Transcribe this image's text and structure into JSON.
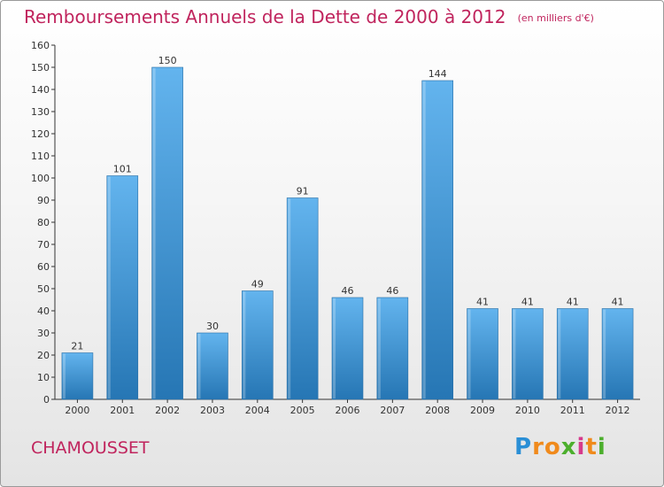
{
  "title": "Remboursements Annuels de la Dette de 2000 à 2012",
  "subtitle": "(en milliers d'€)",
  "place_name": "CHAMOUSSET",
  "brand": {
    "letters": [
      "P",
      "r",
      "o",
      "x",
      "i",
      "t",
      "i"
    ],
    "colors": [
      "#2a8fd6",
      "#f08a1c",
      "#f08a1c",
      "#4caf2d",
      "#d63a8c",
      "#f08a1c",
      "#4caf2d"
    ]
  },
  "colors": {
    "title": "#c0245d",
    "bar_light": "#63b4ee",
    "bar_dark": "#2676b4"
  },
  "chart_data": {
    "type": "bar",
    "categories": [
      "2000",
      "2001",
      "2002",
      "2003",
      "2004",
      "2005",
      "2006",
      "2007",
      "2008",
      "2009",
      "2010",
      "2011",
      "2012"
    ],
    "values": [
      21,
      101,
      150,
      30,
      49,
      91,
      46,
      46,
      144,
      41,
      41,
      41,
      41
    ],
    "ylim": [
      0,
      160
    ],
    "yticks": [
      0,
      10,
      20,
      30,
      40,
      50,
      60,
      70,
      80,
      90,
      100,
      110,
      120,
      130,
      140,
      150,
      160
    ],
    "grid": false,
    "legend": "none"
  }
}
